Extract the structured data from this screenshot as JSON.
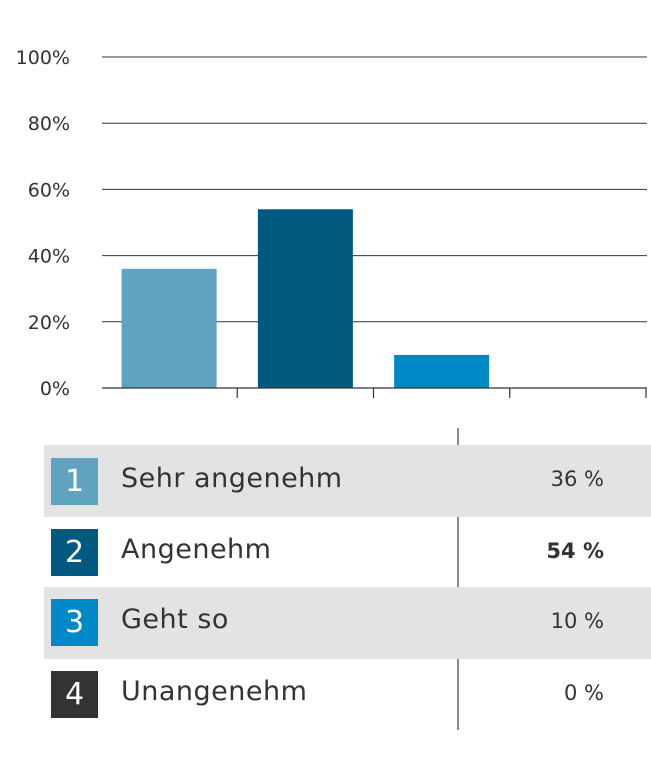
{
  "chart_data": {
    "type": "bar",
    "categories": [
      "Sehr angenehm",
      "Angenehm",
      "Geht so",
      "Unangenehm"
    ],
    "values": [
      36,
      54,
      10,
      0
    ],
    "value_labels": [
      "36 %",
      "54 %",
      "10 %",
      "0 %"
    ],
    "ylim": [
      0,
      100
    ],
    "yticks": [
      0,
      20,
      40,
      60,
      80,
      100
    ],
    "ytick_labels": [
      "0%",
      "20%",
      "40%",
      "60%",
      "80%",
      "100%"
    ],
    "grid": true,
    "colors": [
      "#5fa3c0",
      "#005a80",
      "#0088c8",
      "#333333"
    ],
    "highlight_index": 1
  },
  "legend": [
    {
      "number": "1",
      "label": "Sehr angenehm",
      "value": "36 %",
      "color": "#5fa3c0"
    },
    {
      "number": "2",
      "label": "Angenehm",
      "value": "54 %",
      "color": "#005a80"
    },
    {
      "number": "3",
      "label": "Geht so",
      "value": "10 %",
      "color": "#0088c8"
    },
    {
      "number": "4",
      "label": "Unangenehm",
      "value": "0 %",
      "color": "#333333"
    }
  ]
}
